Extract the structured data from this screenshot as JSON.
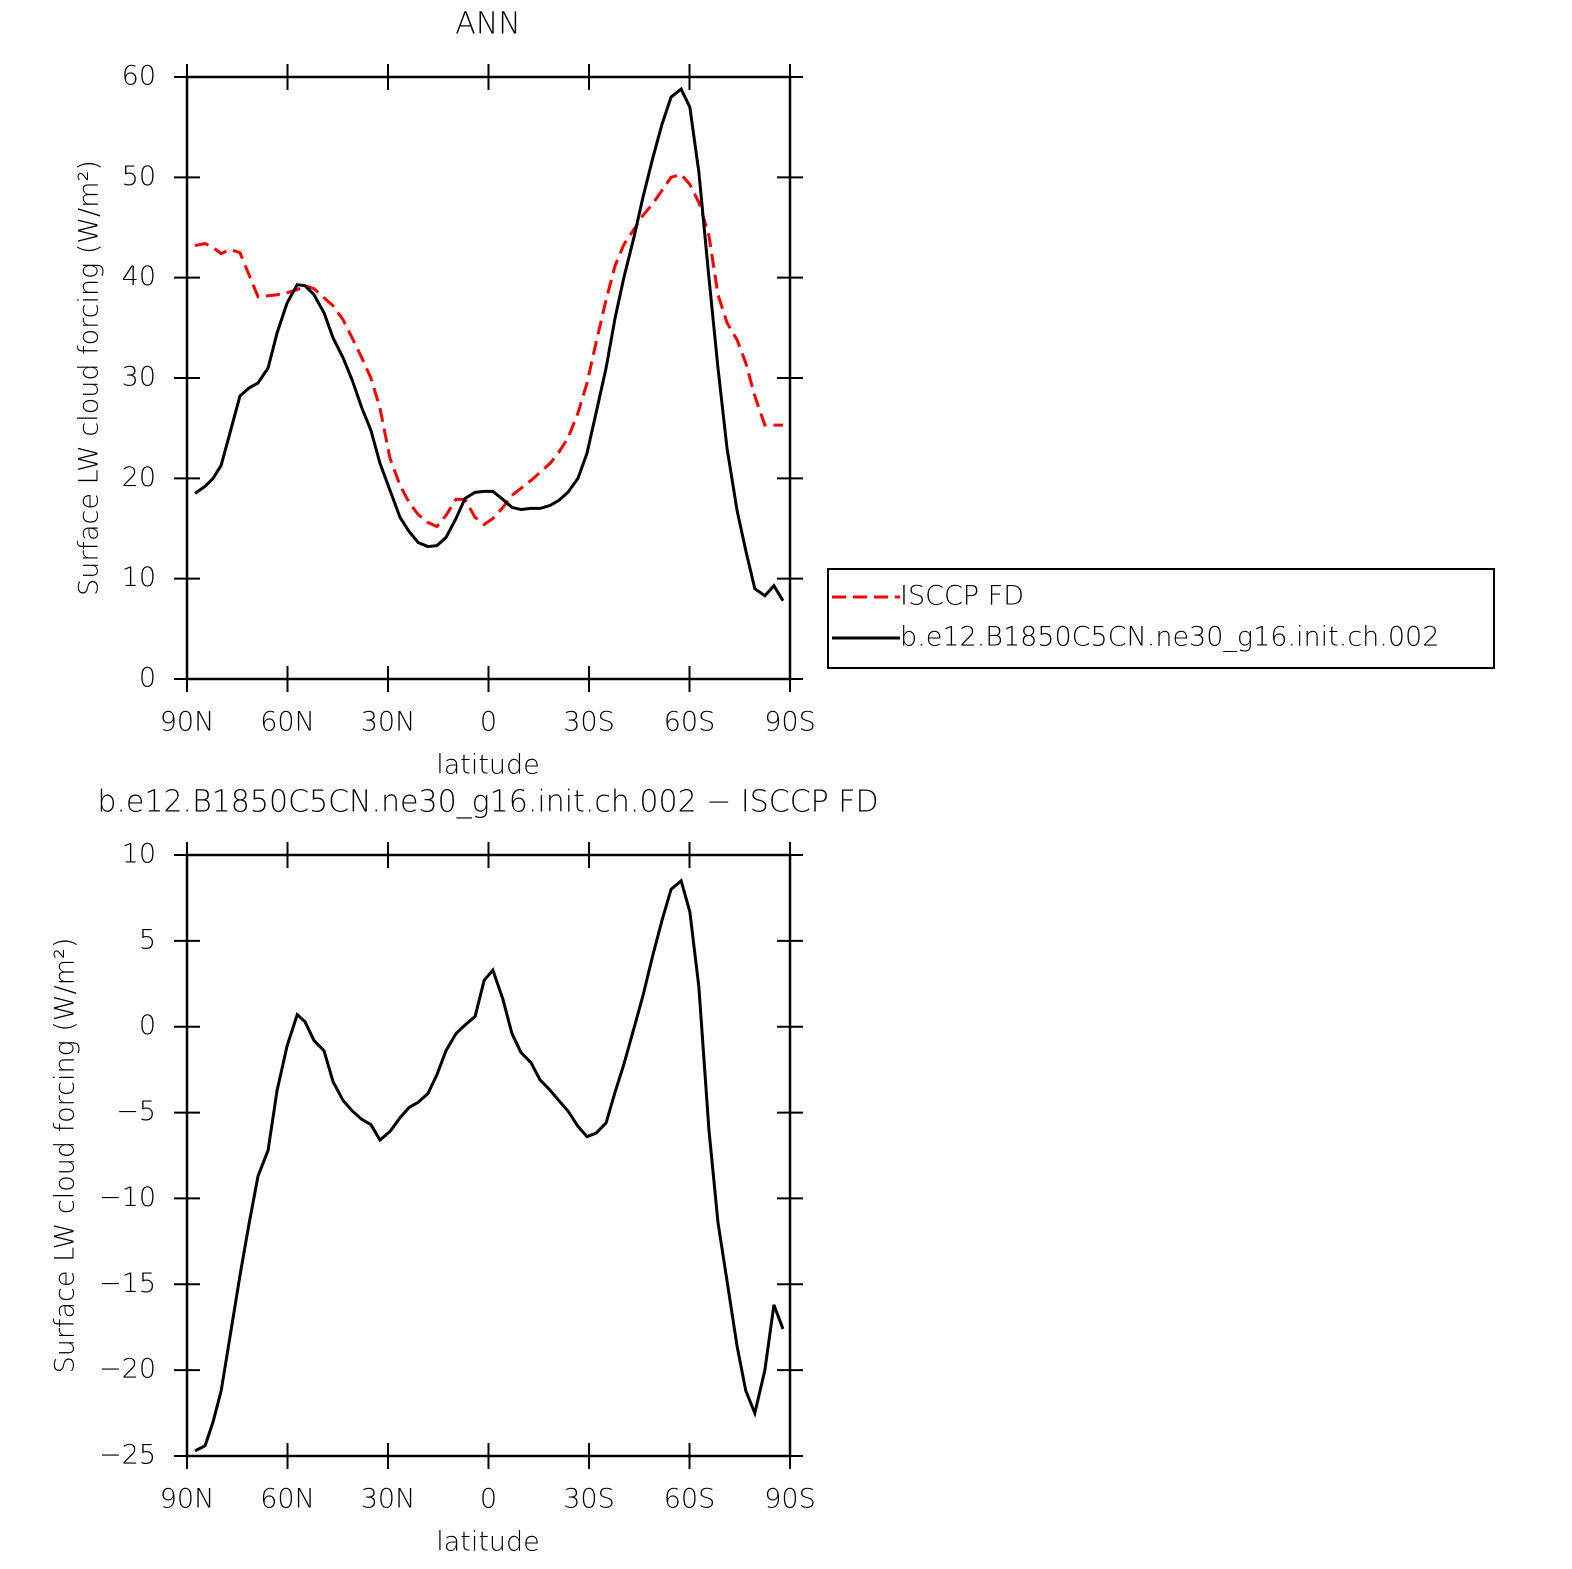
{
  "chart_data": [
    {
      "type": "line",
      "title": "ANN",
      "xlabel": "latitude",
      "ylabel": "Surface LW cloud forcing (W/m²)",
      "x": [
        87.6,
        84.6,
        82.2,
        79.8,
        77.2,
        74.2,
        71.5,
        68.8,
        65.8,
        63.1,
        60.1,
        57.1,
        54.8,
        52.1,
        49.1,
        46.4,
        43.4,
        40.7,
        37.8,
        35.1,
        32.4,
        29.4,
        26.4,
        23.7,
        21.0,
        18.1,
        15.4,
        12.7,
        9.7,
        7.0,
        4.0,
        1.3,
        -1.3,
        -4.3,
        -7.0,
        -9.7,
        -12.7,
        -15.4,
        -18.4,
        -21.0,
        -23.7,
        -26.7,
        -29.4,
        -32.1,
        -35.1,
        -37.8,
        -40.4,
        -43.4,
        -46.1,
        -49.1,
        -51.8,
        -54.5,
        -57.5,
        -60.1,
        -62.8,
        -65.8,
        -68.5,
        -71.2,
        -74.2,
        -76.8,
        -79.5,
        -82.5,
        -85.2,
        -87.9
      ],
      "series": [
        {
          "name": "ISCCP FD",
          "color": "#ff0000",
          "style": "dashed",
          "values": [
            43.2,
            43.4,
            43,
            42.4,
            42.8,
            42.5,
            40.3,
            38.1,
            38.2,
            38.3,
            38.5,
            38.8,
            39.2,
            38.9,
            38,
            37.2,
            35.8,
            34,
            32,
            30,
            27,
            22,
            19.3,
            17.6,
            16.4,
            15.6,
            15.2,
            16.3,
            17.9,
            17.9,
            16.1,
            15.4,
            16,
            17.1,
            18.3,
            19,
            19.8,
            20.6,
            21.5,
            22.6,
            24,
            26.5,
            29.5,
            33.5,
            37.8,
            41.2,
            43.3,
            44.8,
            46.2,
            47.4,
            48.7,
            50,
            50.3,
            49.3,
            47.5,
            44.2,
            38.3,
            35.5,
            33.8,
            31.5,
            28.2,
            25.3,
            25.3,
            25.3
          ]
        },
        {
          "name": "b.e12.B1850C5CN.ne30_g16.init.ch.002",
          "color": "#000000",
          "style": "solid",
          "values": [
            18.5,
            19.2,
            20,
            21.3,
            24.5,
            28.2,
            29,
            29.5,
            31,
            34.5,
            37.5,
            39.3,
            39.2,
            38.3,
            36.5,
            34,
            32,
            29.8,
            27,
            24.8,
            21.5,
            18.8,
            16.1,
            14.7,
            13.6,
            13.2,
            13.3,
            14.1,
            16,
            18,
            18.6,
            18.7,
            18.7,
            17.9,
            17.1,
            16.9,
            17,
            17,
            17.3,
            17.8,
            18.6,
            20,
            22.5,
            26.5,
            31,
            36,
            40,
            44,
            48,
            52,
            55.3,
            58,
            58.8,
            57,
            50.5,
            40,
            31,
            23,
            16.8,
            12.8,
            9,
            8.3,
            9.3,
            7.8
          ]
        }
      ],
      "xlim": [
        90,
        -90
      ],
      "xticks": [
        {
          "value": 90,
          "label": "90N"
        },
        {
          "value": 60,
          "label": "60N"
        },
        {
          "value": 30,
          "label": "30N"
        },
        0,
        {
          "value": -30,
          "label": "30S"
        },
        {
          "value": -60,
          "label": "60S"
        },
        {
          "value": -90,
          "label": "90S"
        }
      ],
      "ylim": [
        0,
        60
      ],
      "yticks": [
        0,
        10,
        20,
        30,
        40,
        50,
        60
      ],
      "legend": "right"
    },
    {
      "type": "line",
      "title": "b.e12.B1850C5CN.ne30_g16.init.ch.002 − ISCCP FD",
      "xlabel": "latitude",
      "ylabel": "Surface LW cloud forcing (W/m²)",
      "x": [
        87.6,
        84.6,
        82.2,
        79.8,
        77.2,
        74.2,
        71.5,
        68.8,
        65.8,
        63.1,
        60.1,
        57.1,
        54.8,
        52.1,
        49.1,
        46.4,
        43.4,
        40.7,
        37.8,
        35.1,
        32.4,
        29.4,
        26.4,
        23.7,
        21.0,
        18.1,
        15.4,
        12.7,
        9.7,
        7.0,
        4.0,
        1.3,
        -1.3,
        -4.3,
        -7.0,
        -9.7,
        -12.7,
        -15.4,
        -18.4,
        -21.0,
        -23.7,
        -26.7,
        -29.4,
        -32.1,
        -35.1,
        -37.8,
        -40.4,
        -43.4,
        -46.1,
        -49.1,
        -51.8,
        -54.5,
        -57.5,
        -60.1,
        -62.8,
        -65.8,
        -68.5,
        -71.2,
        -74.2,
        -76.8,
        -79.5,
        -82.5,
        -85.2,
        -87.9
      ],
      "values": [
        -24.7,
        -24.4,
        -23,
        -21.2,
        -18.1,
        -14.5,
        -11.5,
        -8.7,
        -7.2,
        -3.7,
        -1.1,
        0.7,
        0.3,
        -0.8,
        -1.4,
        -3.2,
        -4.3,
        -4.9,
        -5.4,
        -5.7,
        -6.6,
        -6.1,
        -5.3,
        -4.7,
        -4.4,
        -3.9,
        -2.8,
        -1.4,
        -0.4,
        0.1,
        0.6,
        2.7,
        3.3,
        1.6,
        -0.4,
        -1.5,
        -2.1,
        -3.1,
        -3.7,
        -4.3,
        -4.9,
        -5.8,
        -6.4,
        -6.2,
        -5.6,
        -3.8,
        -2.2,
        -0.1,
        1.8,
        4.2,
        6.2,
        8,
        8.5,
        6.7,
        2.3,
        -6,
        -11.4,
        -14.8,
        -18.6,
        -21.2,
        -22.5,
        -20,
        -16.2,
        -17.6
      ],
      "color": "#000000",
      "xlim": [
        90,
        -90
      ],
      "xticks": [
        {
          "value": 90,
          "label": "90N"
        },
        {
          "value": 60,
          "label": "60N"
        },
        {
          "value": 30,
          "label": "30N"
        },
        0,
        {
          "value": -30,
          "label": "30S"
        },
        {
          "value": -60,
          "label": "60S"
        },
        {
          "value": -90,
          "label": "90S"
        }
      ],
      "ylim": [
        -25,
        10
      ],
      "yticks": [
        {
          "value": -25,
          "label": "−25"
        },
        {
          "value": -20,
          "label": "−20"
        },
        {
          "value": -15,
          "label": "−15"
        },
        {
          "value": -10,
          "label": "−10"
        },
        {
          "value": -5,
          "label": "−5"
        },
        0,
        5,
        10
      ]
    }
  ]
}
